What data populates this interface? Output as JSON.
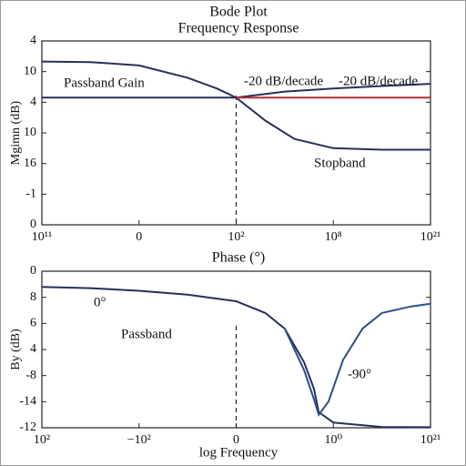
{
  "chart_data": [
    {
      "type": "line",
      "title": "Bode Plot",
      "subtitle": "Frequency Response",
      "y_label": "Mgimn (dB)",
      "xlim": [
        0,
        4
      ],
      "ylim": [
        0,
        6
      ],
      "xticks": [
        {
          "value": 0,
          "label": "10¹¹"
        },
        {
          "value": 1,
          "label": "0"
        },
        {
          "value": 2,
          "label": "10²"
        },
        {
          "value": 3,
          "label": "10⁸"
        },
        {
          "value": 4,
          "label": "10²¹"
        }
      ],
      "yticks": [
        {
          "value": 6,
          "label": "4"
        },
        {
          "value": 5,
          "label": "10"
        },
        {
          "value": 4,
          "label": "4"
        },
        {
          "value": 3,
          "label": "10"
        },
        {
          "value": 2,
          "label": "16"
        },
        {
          "value": 1,
          "label": "-1"
        },
        {
          "value": 0,
          "label": "0"
        }
      ],
      "marker_x": 2,
      "annotations": [
        "Passband Gain",
        "-20 dB/decade",
        "-20 dB/decade",
        "Stopband"
      ],
      "series": [
        {
          "color": "#26305e",
          "x": [
            0,
            0.5,
            1,
            1.5,
            1.8,
            2,
            2.3,
            2.6,
            3,
            3.5,
            4
          ],
          "values": [
            5.33,
            5.31,
            5.2,
            4.8,
            4.45,
            4.15,
            3.4,
            2.8,
            2.5,
            2.45,
            2.45
          ]
        },
        {
          "color": "#26305e",
          "x": [
            2,
            2.5,
            3,
            3.5,
            4
          ],
          "values": [
            4.15,
            4.35,
            4.45,
            4.53,
            4.6
          ]
        },
        {
          "color": "#26305e",
          "x": [
            0,
            2
          ],
          "values": [
            4.15,
            4.15
          ]
        },
        {
          "color": "#b03030",
          "x": [
            2,
            4
          ],
          "values": [
            4.15,
            4.15
          ]
        }
      ]
    },
    {
      "type": "line",
      "title": "Phase (°)",
      "y_label": "By (dB)",
      "x_label": "log Frequency",
      "xlim": [
        0,
        4
      ],
      "ylim": [
        0,
        6
      ],
      "xticks": [
        {
          "value": 0,
          "label": "10²"
        },
        {
          "value": 1,
          "label": "−10²"
        },
        {
          "value": 2,
          "label": "0"
        },
        {
          "value": 3,
          "label": "10⁰"
        },
        {
          "value": 4,
          "label": "10²¹"
        }
      ],
      "yticks": [
        {
          "value": 6,
          "label": "0"
        },
        {
          "value": 5,
          "label": "8"
        },
        {
          "value": 4,
          "label": "6"
        },
        {
          "value": 3,
          "label": "4"
        },
        {
          "value": 2,
          "label": "-8"
        },
        {
          "value": 1,
          "label": "-14"
        },
        {
          "value": 0,
          "label": "-12"
        }
      ],
      "marker_x": 2,
      "annotations": [
        "0°",
        "Passband",
        "-90°"
      ],
      "series": [
        {
          "color": "#26305e",
          "x": [
            0,
            0.5,
            1,
            1.5,
            2,
            2.3,
            2.5,
            2.7,
            2.8,
            2.85,
            3,
            3.5,
            4
          ],
          "values": [
            5.4,
            5.35,
            5.25,
            5.1,
            4.85,
            4.4,
            3.8,
            2.5,
            1.5,
            0.6,
            0.2,
            0.03,
            0.02
          ]
        },
        {
          "color": "#2d4e8a",
          "x": [
            2.5,
            2.7,
            2.8,
            2.85,
            2.95,
            3.1,
            3.3,
            3.5,
            3.8,
            4
          ],
          "values": [
            3.8,
            2.2,
            1.1,
            0.5,
            1.0,
            2.6,
            3.8,
            4.4,
            4.65,
            4.75
          ]
        }
      ]
    }
  ]
}
